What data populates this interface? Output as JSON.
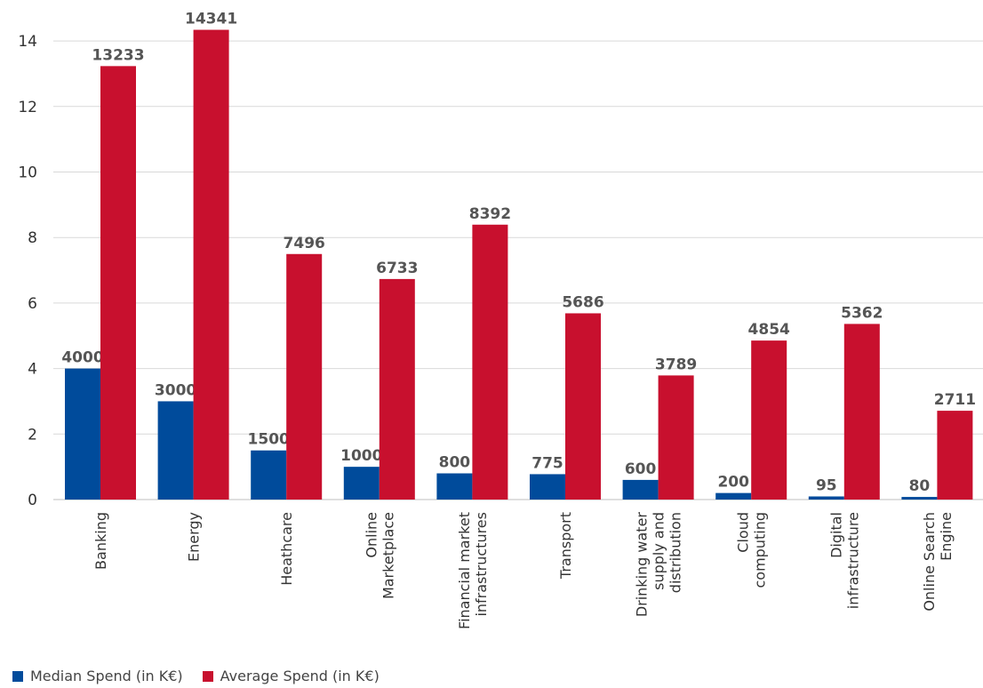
{
  "chart_data": {
    "type": "bar",
    "title": "",
    "xlabel": "",
    "ylabel": "",
    "ylim": [
      0,
      15
    ],
    "yticks": [
      0,
      2,
      4,
      6,
      8,
      10,
      12,
      14
    ],
    "grid": true,
    "legend_position": "bottom-left",
    "categories": [
      "Banking",
      "Energy",
      "Heathcare",
      "Online Marketplace",
      "Financial market infrastructures",
      "Transport",
      "Drinking water supply and distribution",
      "Cloud computing",
      "Digital infrastructure",
      "Online Search Engine"
    ],
    "category_lines": [
      [
        "Banking"
      ],
      [
        "Energy"
      ],
      [
        "Heathcare"
      ],
      [
        "Online",
        "Marketplace"
      ],
      [
        "Financial market",
        "infrastructures"
      ],
      [
        "Transport"
      ],
      [
        "Drinking water",
        "supply and",
        "distribution"
      ],
      [
        "Cloud",
        "computing"
      ],
      [
        "Digital",
        "infrastructure"
      ],
      [
        "Online Search",
        "Engine"
      ]
    ],
    "series": [
      {
        "name": "Median Spend (in K€)",
        "color": "#004b9b",
        "values": [
          4.0,
          3.0,
          1.5,
          1.0,
          0.8,
          0.775,
          0.6,
          0.2,
          0.095,
          0.08
        ],
        "labels": [
          "4000",
          "3000",
          "1500",
          "1000",
          "800",
          "775",
          "600",
          "200",
          "95",
          "80"
        ]
      },
      {
        "name": "Average Spend (in K€)",
        "color": "#c8102e",
        "values": [
          13.233,
          14.341,
          7.496,
          6.733,
          8.392,
          5.686,
          3.789,
          4.854,
          5.362,
          2.711
        ],
        "labels": [
          "13233",
          "14341",
          "7496",
          "6733",
          "8392",
          "5686",
          "3789",
          "4854",
          "5362",
          "2711"
        ]
      }
    ]
  }
}
